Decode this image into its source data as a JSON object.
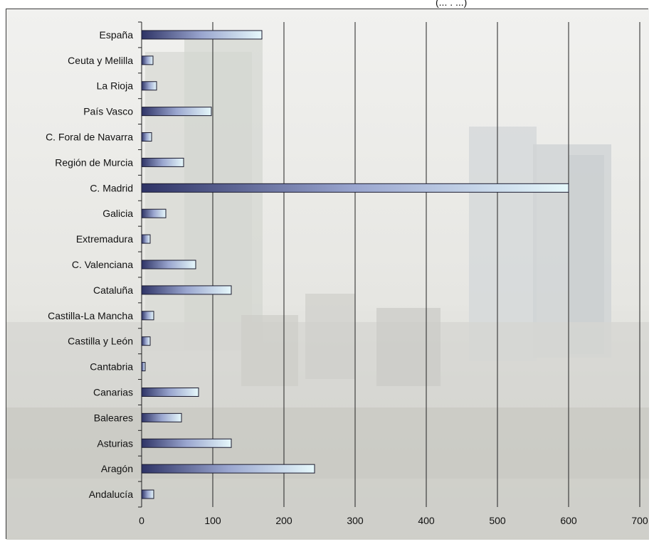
{
  "chart_data": {
    "type": "bar",
    "orientation": "horizontal",
    "title_fragment": "(... . ...)",
    "categories": [
      "España",
      "Ceuta y Melilla",
      "La Rioja",
      "País Vasco",
      "C. Foral de Navarra",
      "Región de Murcia",
      "C. Madrid",
      "Galicia",
      "Extremadura",
      "C. Valenciana",
      "Cataluña",
      "Castilla-La Mancha",
      "Castilla y León",
      "Cantabria",
      "Canarias",
      "Baleares",
      "Asturias",
      "Aragón",
      "Andalucía"
    ],
    "values": [
      169,
      16,
      21,
      98,
      14,
      59,
      600,
      34,
      12,
      76,
      126,
      17,
      12,
      5,
      80,
      56,
      126,
      243,
      17
    ],
    "xlim": [
      0,
      700
    ],
    "xticks": [
      "0",
      "100",
      "200",
      "300",
      "400",
      "500",
      "600",
      "700"
    ],
    "grid": "vertical",
    "background": "faded city skyline photograph",
    "colors": {
      "bar_dark": "#2e3366",
      "bar_mid": "#9aa6cf",
      "bar_light": "#e6f8fb",
      "bar_outline": "#1a1a2e",
      "gridline": "#222222"
    }
  }
}
